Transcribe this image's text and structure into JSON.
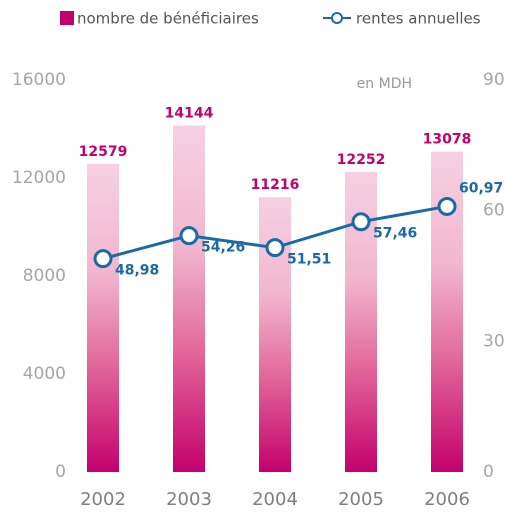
{
  "chart_data": {
    "type": "bar_line",
    "categories": [
      "2002",
      "2003",
      "2004",
      "2005",
      "2006"
    ],
    "annotation": "en MDH",
    "series": [
      {
        "name": "nombre de bénéficiaires",
        "type": "bar",
        "color": "#c4006c",
        "values": [
          12579,
          14144,
          11216,
          12252,
          13078
        ]
      },
      {
        "name": "rentes annuelles",
        "type": "line",
        "axis": "y2",
        "color": "#1a6aa8",
        "values": [
          48.98,
          54.26,
          51.51,
          57.46,
          60.97
        ],
        "value_labels": [
          "48,98",
          "54,26",
          "51,51",
          "57,46",
          "60,97"
        ]
      }
    ],
    "ylim": [
      0,
      16000
    ],
    "yticks": [
      0,
      4000,
      8000,
      12000,
      16000
    ],
    "y2lim": [
      0,
      90
    ],
    "y2ticks": [
      0,
      30,
      60,
      90
    ],
    "legend": "top"
  }
}
